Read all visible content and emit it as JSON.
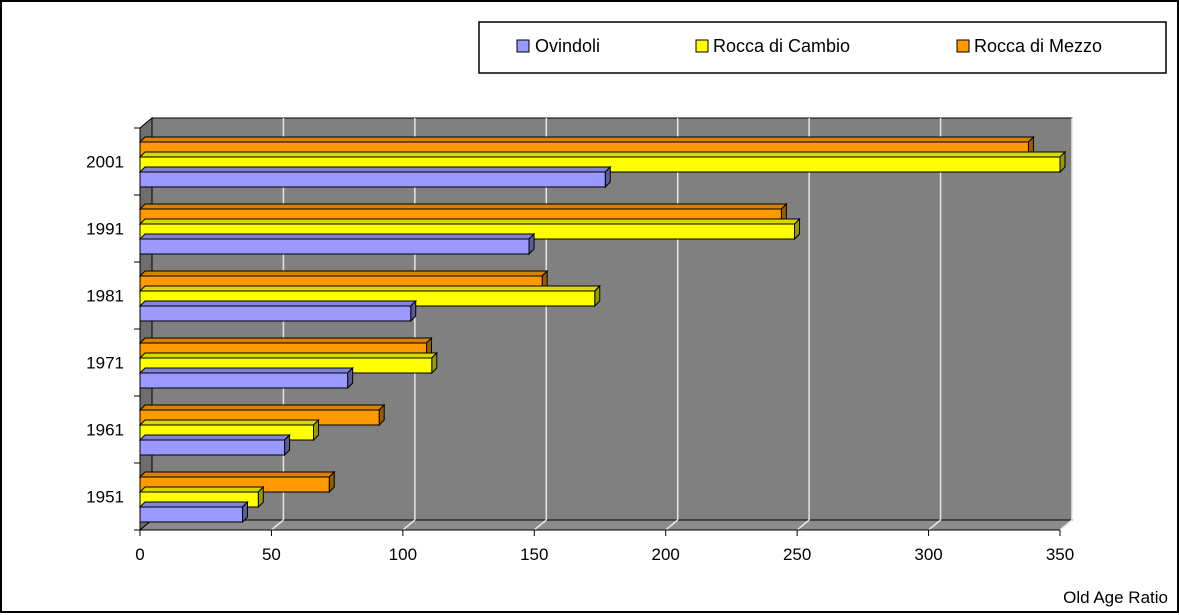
{
  "chart_data": {
    "type": "bar",
    "orientation": "horizontal",
    "style": "3d",
    "categories": [
      "1951",
      "1961",
      "1971",
      "1981",
      "1991",
      "2001"
    ],
    "series": [
      {
        "name": "Ovindoli",
        "color": "#9999FF",
        "values": [
          39,
          55,
          79,
          103,
          148,
          177
        ]
      },
      {
        "name": "Rocca di Cambio",
        "color": "#FFFF00",
        "values": [
          45,
          66,
          111,
          173,
          249,
          350
        ]
      },
      {
        "name": "Rocca di Mezzo",
        "color": "#FF9900",
        "values": [
          72,
          91,
          109,
          153,
          244,
          338
        ]
      }
    ],
    "x_ticks": [
      "0",
      "50",
      "100",
      "150",
      "200",
      "250",
      "300",
      "350"
    ],
    "xlim": [
      0,
      350
    ],
    "xlabel": "Old Age Ratio",
    "grid": true,
    "legend_position": "top-right",
    "plot_background": "#808080"
  }
}
